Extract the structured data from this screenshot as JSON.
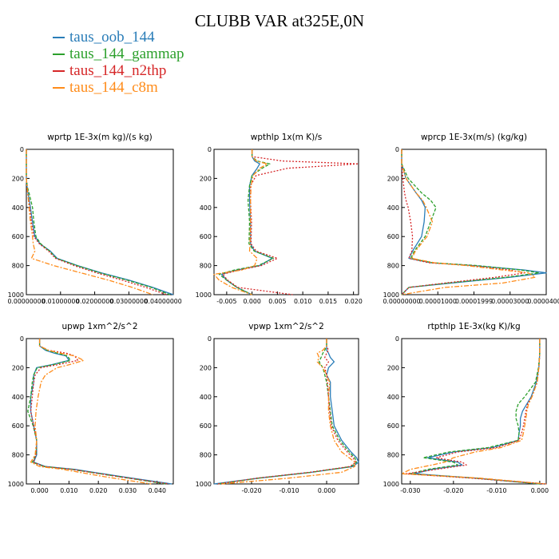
{
  "title": "CLUBB VAR at325E,0N",
  "legend": [
    {
      "name": "taus_oob_144",
      "color": "#2a7db8"
    },
    {
      "name": "taus_144_gammap",
      "color": "#2ca02c"
    },
    {
      "name": "taus_144_n2thp",
      "color": "#d62728"
    },
    {
      "name": "taus_144_c8m",
      "color": "#ff8c1a"
    }
  ],
  "chart_data": [
    {
      "type": "line",
      "title": "wprtp  1E-3x(m kg)/(s kg)",
      "xlim": [
        0,
        0.043
      ],
      "ylim": [
        1000,
        0
      ],
      "xticks": [
        0,
        0.01,
        0.02,
        0.03,
        0.04
      ],
      "xtick_labels": [
        "0.00000000",
        "0.01000000",
        "0.02000000",
        "0.03000000",
        "0.04000000"
      ],
      "yticks": [
        0,
        200,
        400,
        600,
        800,
        1000
      ],
      "ytick_labels": [
        "0",
        "200",
        "400",
        "600",
        "800",
        "1000"
      ],
      "y": [
        0,
        100,
        200,
        260,
        300,
        400,
        500,
        600,
        650,
        700,
        750,
        800,
        850,
        900,
        950,
        1000
      ],
      "series": [
        {
          "name": "taus_oob_144",
          "x": [
            0,
            0,
            0,
            0.0002,
            0.0005,
            0.0012,
            0.0018,
            0.0025,
            0.004,
            0.007,
            0.009,
            0.015,
            0.022,
            0.03,
            0.037,
            0.043
          ]
        },
        {
          "name": "taus_144_gammap",
          "x": [
            0,
            0,
            0,
            0.0003,
            0.0008,
            0.0018,
            0.0022,
            0.0028,
            0.0042,
            0.0068,
            0.0088,
            0.0148,
            0.0215,
            0.0295,
            0.0365,
            0.042
          ]
        },
        {
          "name": "taus_144_n2thp",
          "x": [
            0,
            0,
            0,
            0.0002,
            0.0004,
            0.001,
            0.0015,
            0.0022,
            0.0038,
            0.0065,
            0.0085,
            0.014,
            0.0205,
            0.028,
            0.035,
            0.041
          ]
        },
        {
          "name": "taus_144_c8m",
          "x": [
            0,
            0,
            0,
            0.0002,
            0.0004,
            0.0008,
            0.0012,
            0.0018,
            0.002,
            0.0025,
            0.0015,
            0.008,
            0.016,
            0.024,
            0.031,
            0.037
          ]
        }
      ]
    },
    {
      "type": "line",
      "title": "wpthlp  1x(m K)/s",
      "xlim": [
        -0.0075,
        0.021
      ],
      "ylim": [
        1000,
        0
      ],
      "xticks": [
        -0.005,
        0,
        0.005,
        0.01,
        0.015,
        0.02
      ],
      "xtick_labels": [
        "-0.005",
        "0.000",
        "0.005",
        "0.010",
        "0.015",
        "0.020"
      ],
      "yticks": [
        0,
        200,
        400,
        600,
        800,
        1000
      ],
      "ytick_labels": [
        "0",
        "200",
        "400",
        "600",
        "800",
        "1000"
      ],
      "y": [
        0,
        50,
        80,
        100,
        130,
        180,
        250,
        350,
        500,
        650,
        700,
        750,
        800,
        830,
        860,
        900,
        950,
        1000
      ],
      "series": [
        {
          "name": "taus_oob_144",
          "x": [
            0,
            0,
            0.0005,
            0.0015,
            0.001,
            0,
            -0.0005,
            -0.0005,
            -0.0003,
            -0.0003,
            0.0005,
            0.004,
            0.0015,
            -0.003,
            -0.006,
            -0.005,
            -0.003,
            0
          ]
        },
        {
          "name": "taus_144_gammap",
          "x": [
            0,
            0,
            0.001,
            0.0035,
            0.002,
            0,
            -0.0005,
            -0.0008,
            -0.0005,
            -0.0006,
            0.0004,
            0.0042,
            0.0012,
            -0.0035,
            -0.0065,
            -0.005,
            -0.003,
            0
          ]
        },
        {
          "name": "taus_144_n2thp",
          "x": [
            0,
            0,
            0.006,
            0.021,
            0.007,
            0.0008,
            -0.0003,
            -0.0003,
            -0.0001,
            -0.0002,
            0.0008,
            0.005,
            0.0018,
            -0.0025,
            -0.0058,
            -0.0048,
            -0.0028,
            0.008
          ]
        },
        {
          "name": "taus_144_c8m",
          "x": [
            0,
            0,
            0.0008,
            0.003,
            0.0015,
            0.0002,
            -0.0002,
            -0.0003,
            -0.0003,
            -0.0004,
            -0.0005,
            0.001,
            0.0005,
            -0.002,
            -0.0075,
            -0.0065,
            -0.004,
            0
          ]
        }
      ]
    },
    {
      "type": "line",
      "title": "wprcp  1E-3x(m/s) (kg/kg)",
      "xlim": [
        0,
        4e-05
      ],
      "ylim": [
        1000,
        0
      ],
      "xticks": [
        0,
        1e-05,
        2e-05,
        3e-05,
        4e-05
      ],
      "xtick_labels": [
        "0.00000000",
        "0.00001000",
        "0.00001999",
        "0.00003000",
        "0.00004000"
      ],
      "yticks": [
        0,
        200,
        400,
        600,
        800,
        1000
      ],
      "ytick_labels": [
        "0",
        "200",
        "400",
        "600",
        "800",
        "1000"
      ],
      "y": [
        0,
        100,
        200,
        300,
        350,
        400,
        500,
        600,
        700,
        750,
        780,
        800,
        830,
        850,
        880,
        920,
        950,
        1000
      ],
      "series": [
        {
          "name": "taus_oob_144",
          "x": [
            0,
            0,
            1.2e-06,
            4e-06,
            5.5e-06,
            6.5e-06,
            6.2e-06,
            5.5e-06,
            3e-06,
            2e-06,
            8e-06,
            2e-05,
            3.4e-05,
            4e-05,
            3e-05,
            1.4e-05,
            2e-06,
            0
          ]
        },
        {
          "name": "taus_144_gammap",
          "x": [
            0,
            0,
            1.8e-06,
            5.5e-06,
            8e-06,
            9.5e-06,
            8e-06,
            6.5e-06,
            3.5e-06,
            2.5e-06,
            8.5e-06,
            2.1e-05,
            3.3e-05,
            3.8e-05,
            2.9e-05,
            1.3e-05,
            2e-06,
            0
          ]
        },
        {
          "name": "taus_144_n2thp",
          "x": [
            0,
            0,
            3e-07,
            8e-07,
            1.2e-06,
            1.8e-06,
            2.5e-06,
            3e-06,
            2.8e-06,
            2e-06,
            7.5e-06,
            1.9e-05,
            3e-05,
            3.4e-05,
            2.6e-05,
            1.2e-05,
            2e-06,
            0
          ]
        },
        {
          "name": "taus_144_c8m",
          "x": [
            0,
            0,
            1.2e-06,
            4e-06,
            5.8e-06,
            6.8e-06,
            8.5e-06,
            7e-06,
            3.8e-06,
            2.8e-06,
            9e-06,
            1.8e-05,
            2.8e-05,
            3.5e-05,
            3.7e-05,
            2.8e-05,
            1.2e-05,
            0
          ]
        }
      ]
    },
    {
      "type": "line",
      "title": "upwp  1xm^2/s^2",
      "xlim": [
        -0.0045,
        0.0455
      ],
      "ylim": [
        1000,
        0
      ],
      "xticks": [
        0,
        0.01,
        0.02,
        0.03,
        0.04
      ],
      "xtick_labels": [
        "0.000",
        "0.010",
        "0.020",
        "0.030",
        "0.040"
      ],
      "yticks": [
        0,
        200,
        400,
        600,
        800,
        1000
      ],
      "ytick_labels": [
        "0",
        "200",
        "400",
        "600",
        "800",
        "1000"
      ],
      "y": [
        0,
        50,
        80,
        100,
        120,
        150,
        180,
        200,
        250,
        300,
        400,
        500,
        600,
        700,
        800,
        850,
        880,
        900,
        950,
        1000
      ],
      "series": [
        {
          "name": "taus_oob_144",
          "x": [
            0,
            0,
            0.002,
            0.005,
            0.009,
            0.01,
            0.004,
            -0.001,
            -0.002,
            -0.002,
            -0.003,
            -0.003,
            -0.002,
            -0.001,
            -0.001,
            -0.002,
            0.002,
            0.012,
            0.028,
            0.045
          ]
        },
        {
          "name": "taus_144_gammap",
          "x": [
            0,
            0,
            0.0025,
            0.006,
            0.0095,
            0.0105,
            0.0045,
            -0.0008,
            -0.002,
            -0.0025,
            -0.003,
            -0.004,
            -0.0022,
            -0.001,
            -0.0012,
            -0.0025,
            0.0015,
            0.011,
            0.027,
            0.043
          ]
        },
        {
          "name": "taus_144_n2thp",
          "x": [
            0,
            0,
            0.003,
            0.009,
            0.012,
            0.013,
            0.006,
            0.0005,
            -0.0015,
            -0.002,
            -0.0025,
            -0.003,
            -0.002,
            -0.001,
            -0.0012,
            -0.0022,
            0.0015,
            0.011,
            0.027,
            0.044
          ]
        },
        {
          "name": "taus_144_c8m",
          "x": [
            0,
            0,
            0.003,
            0.007,
            0.012,
            0.015,
            0.01,
            0.006,
            0.002,
            0.0005,
            -0.0005,
            -0.0012,
            -0.0015,
            -0.001,
            -0.0015,
            -0.003,
            0,
            0.008,
            0.022,
            0.038
          ]
        }
      ]
    },
    {
      "type": "line",
      "title": "vpwp  1xm^2/s^2",
      "xlim": [
        -0.03,
        0.0085
      ],
      "ylim": [
        1000,
        0
      ],
      "xticks": [
        -0.02,
        -0.01,
        0
      ],
      "xtick_labels": [
        "-0.020",
        "-0.010",
        "0.000"
      ],
      "yticks": [
        0,
        200,
        400,
        600,
        800,
        1000
      ],
      "ytick_labels": [
        "0",
        "200",
        "400",
        "600",
        "800",
        "1000"
      ],
      "y": [
        0,
        50,
        80,
        100,
        130,
        160,
        200,
        250,
        300,
        400,
        500,
        600,
        700,
        780,
        820,
        850,
        880,
        920,
        960,
        1000
      ],
      "series": [
        {
          "name": "taus_oob_144",
          "x": [
            0,
            0,
            0,
            0.0005,
            0.001,
            0.002,
            0.0005,
            0,
            0.001,
            0.001,
            0.0015,
            0.002,
            0.004,
            0.0065,
            0.008,
            0.0085,
            0.007,
            -0.004,
            -0.018,
            -0.03
          ]
        },
        {
          "name": "taus_144_gammap",
          "x": [
            0,
            0,
            -0.0005,
            -0.001,
            -0.0015,
            -0.002,
            -0.001,
            -0.0005,
            0,
            0.0005,
            0.001,
            0.0015,
            0.0035,
            0.006,
            0.0075,
            0.008,
            0.0065,
            -0.004,
            -0.018,
            -0.029
          ]
        },
        {
          "name": "taus_144_n2thp",
          "x": [
            0,
            0,
            0.0005,
            0,
            -0.0005,
            0.0005,
            -0.0005,
            0,
            0.0002,
            0.0005,
            0.0008,
            0.0012,
            0.003,
            0.0055,
            0.007,
            0.0078,
            0.0062,
            -0.0045,
            -0.0185,
            -0.029
          ]
        },
        {
          "name": "taus_144_c8m",
          "x": [
            0,
            0,
            -0.001,
            -0.0025,
            -0.002,
            -0.0025,
            -0.001,
            0,
            0.0008,
            0.0005,
            0.0005,
            0.001,
            0.002,
            0.004,
            0.006,
            0.0075,
            0.0075,
            0.004,
            -0.01,
            -0.028
          ]
        }
      ]
    },
    {
      "type": "line",
      "title": "rtpthlp  1E-3x(kg K)/kg",
      "xlim": [
        -0.032,
        0.0015
      ],
      "ylim": [
        1000,
        0
      ],
      "xticks": [
        -0.03,
        -0.02,
        -0.01,
        0
      ],
      "xtick_labels": [
        "-0.030",
        "-0.020",
        "-0.010",
        "0.000"
      ],
      "yticks": [
        0,
        200,
        400,
        600,
        800,
        1000
      ],
      "ytick_labels": [
        "0",
        "200",
        "400",
        "600",
        "800",
        "1000"
      ],
      "y": [
        0,
        100,
        200,
        300,
        400,
        450,
        500,
        550,
        600,
        650,
        700,
        750,
        780,
        820,
        850,
        870,
        900,
        930,
        960,
        1000
      ],
      "series": [
        {
          "name": "taus_oob_144",
          "x": [
            0,
            0,
            -0.0002,
            -0.0008,
            -0.002,
            -0.003,
            -0.004,
            -0.0045,
            -0.0045,
            -0.0048,
            -0.005,
            -0.011,
            -0.02,
            -0.026,
            -0.019,
            -0.018,
            -0.025,
            -0.029,
            -0.015,
            0
          ]
        },
        {
          "name": "taus_144_gammap",
          "x": [
            0,
            0,
            -0.0003,
            -0.001,
            -0.0035,
            -0.005,
            -0.0055,
            -0.0055,
            -0.005,
            -0.0048,
            -0.005,
            -0.012,
            -0.021,
            -0.027,
            -0.02,
            -0.019,
            -0.026,
            -0.03,
            -0.015,
            0
          ]
        },
        {
          "name": "taus_144_n2thp",
          "x": [
            0,
            0,
            -0.0002,
            -0.0006,
            -0.0018,
            -0.0028,
            -0.0032,
            -0.0035,
            -0.0038,
            -0.0042,
            -0.0048,
            -0.01,
            -0.019,
            -0.024,
            -0.018,
            -0.017,
            -0.024,
            -0.031,
            -0.016,
            0.002
          ]
        },
        {
          "name": "taus_144_c8m",
          "x": [
            0,
            0,
            -0.0002,
            -0.0006,
            -0.0018,
            -0.0026,
            -0.003,
            -0.0032,
            -0.0035,
            -0.0038,
            -0.0042,
            -0.009,
            -0.015,
            -0.02,
            -0.022,
            -0.025,
            -0.03,
            -0.033,
            -0.014,
            0.002
          ]
        }
      ]
    }
  ]
}
